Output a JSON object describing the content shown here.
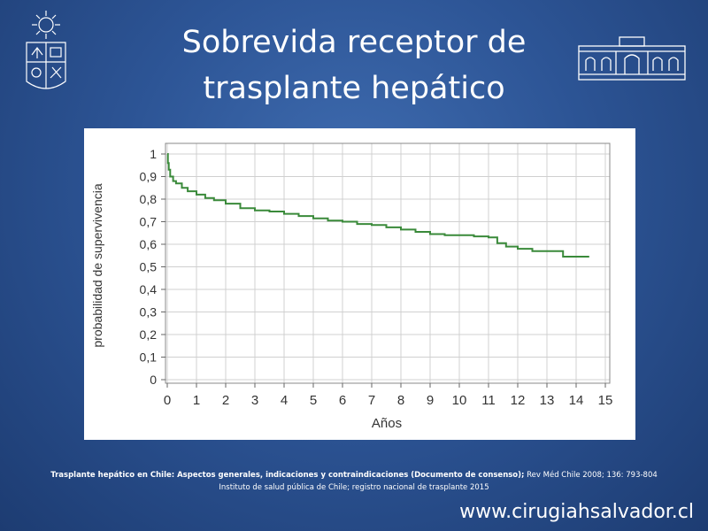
{
  "slide": {
    "title_line1": "Sobrevida receptor de",
    "title_line2": "trasplante hepático",
    "citation_bold": "Trasplante hepático en Chile: Aspectos generales, indicaciones  y contraindicaciones  (Documento de consenso);",
    "citation_rest": " Rev Méd Chile 2008; 136: 793-804",
    "citation_line2": "Instituto de salud pública de Chile; registro nacional de trasplante 2015",
    "website": "www.cirugiahsalvador.cl",
    "left_logo_icon": "university-seal-icon",
    "right_logo_icon": "building-facade-icon"
  },
  "chart_data": {
    "type": "line",
    "title": "",
    "xlabel": "Años",
    "ylabel": "probabilidad de supervivencia",
    "xlim": [
      0,
      15
    ],
    "ylim": [
      0,
      1
    ],
    "grid": true,
    "line_color": "#3a8a3a",
    "x_ticks": [
      "0",
      "1",
      "2",
      "3",
      "4",
      "5",
      "6",
      "7",
      "8",
      "9",
      "10",
      "11",
      "12",
      "13",
      "14",
      "15"
    ],
    "y_ticks": [
      "0",
      "0,1",
      "0,2",
      "0,3",
      "0,4",
      "0,5",
      "0,6",
      "0,7",
      "0,8",
      "0,9",
      "1"
    ],
    "series": [
      {
        "x": [
          0,
          0.02,
          0.05,
          0.1,
          0.2,
          0.3,
          0.5,
          0.7,
          1.0,
          1.3,
          1.6,
          2.0,
          2.5,
          3.0,
          3.5,
          4.0,
          4.5,
          5.0,
          5.5,
          6.0,
          6.5,
          7.0,
          7.5,
          8.0,
          8.5,
          9.0,
          9.5,
          10.0,
          10.5,
          11.0,
          11.3,
          11.6,
          12.0,
          12.5,
          13.0,
          13.5,
          13.55,
          14.0,
          14.45
        ],
        "y": [
          1.0,
          0.96,
          0.93,
          0.9,
          0.88,
          0.87,
          0.85,
          0.835,
          0.82,
          0.805,
          0.795,
          0.78,
          0.76,
          0.75,
          0.745,
          0.735,
          0.725,
          0.715,
          0.705,
          0.7,
          0.69,
          0.685,
          0.675,
          0.665,
          0.655,
          0.645,
          0.64,
          0.64,
          0.635,
          0.63,
          0.605,
          0.59,
          0.58,
          0.57,
          0.57,
          0.57,
          0.545,
          0.545,
          0.545
        ]
      }
    ]
  }
}
